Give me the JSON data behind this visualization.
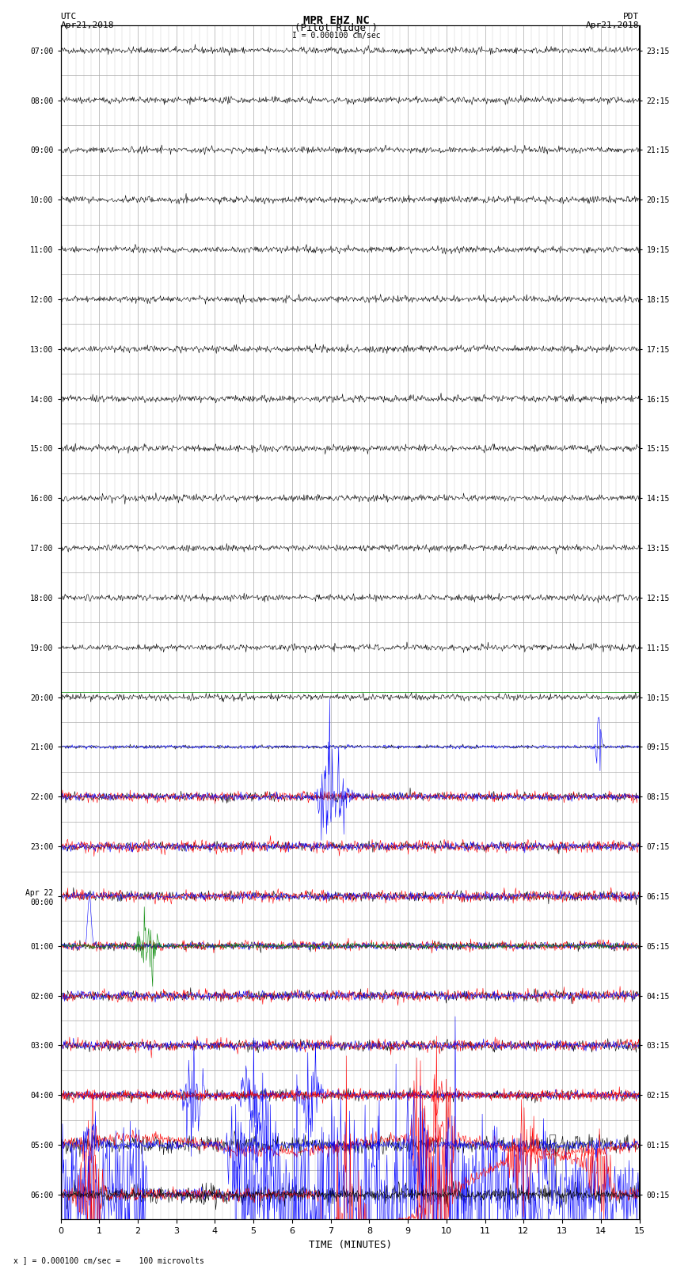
{
  "title_line1": "MPR EHZ NC",
  "title_line2": "(Pilot Ridge )",
  "title_line3": "I = 0.000100 cm/sec",
  "left_label_top": "UTC",
  "left_label_date": "Apr21,2018",
  "right_label_top": "PDT",
  "right_label_date": "Apr21,2018",
  "xlabel": "TIME (MINUTES)",
  "footer": "x ] = 0.000100 cm/sec =    100 microvolts",
  "utc_times": [
    "07:00",
    "08:00",
    "09:00",
    "10:00",
    "11:00",
    "12:00",
    "13:00",
    "14:00",
    "15:00",
    "16:00",
    "17:00",
    "18:00",
    "19:00",
    "20:00",
    "21:00",
    "22:00",
    "23:00",
    "Apr 22\n00:00",
    "01:00",
    "02:00",
    "03:00",
    "04:00",
    "05:00",
    "06:00"
  ],
  "pdt_times": [
    "00:15",
    "01:15",
    "02:15",
    "03:15",
    "04:15",
    "05:15",
    "06:15",
    "07:15",
    "08:15",
    "09:15",
    "10:15",
    "11:15",
    "12:15",
    "13:15",
    "14:15",
    "15:15",
    "16:15",
    "17:15",
    "18:15",
    "19:15",
    "20:15",
    "21:15",
    "22:15",
    "23:15"
  ],
  "n_rows": 24,
  "minutes_per_row": 15,
  "bg_color": "#ffffff",
  "grid_color": "#aaaaaa",
  "trace_color_normal": "#000000",
  "trace_color_red": "#ff0000",
  "trace_color_blue": "#0000ff",
  "trace_color_green": "#008800",
  "signal_scale": 0.35,
  "noise_scale": 0.04
}
